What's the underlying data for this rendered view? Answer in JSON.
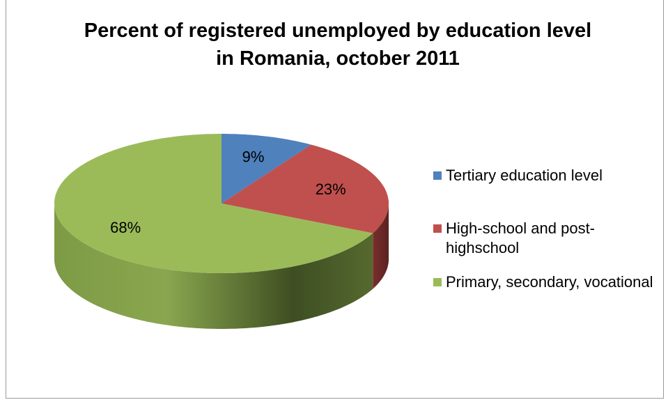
{
  "chart_data": {
    "type": "pie",
    "title": "Percent of registered unemployed by education level in Romania, october 2011",
    "categories": [
      "Tertiary education level",
      "High-school and post-highschool",
      "Primary, secondary, vocational"
    ],
    "values": [
      9,
      23,
      68
    ],
    "value_labels": [
      "9%",
      "23%",
      "68%"
    ],
    "colors": [
      "#4f81bd",
      "#c0504d",
      "#9bbb59"
    ],
    "legend": "right"
  }
}
